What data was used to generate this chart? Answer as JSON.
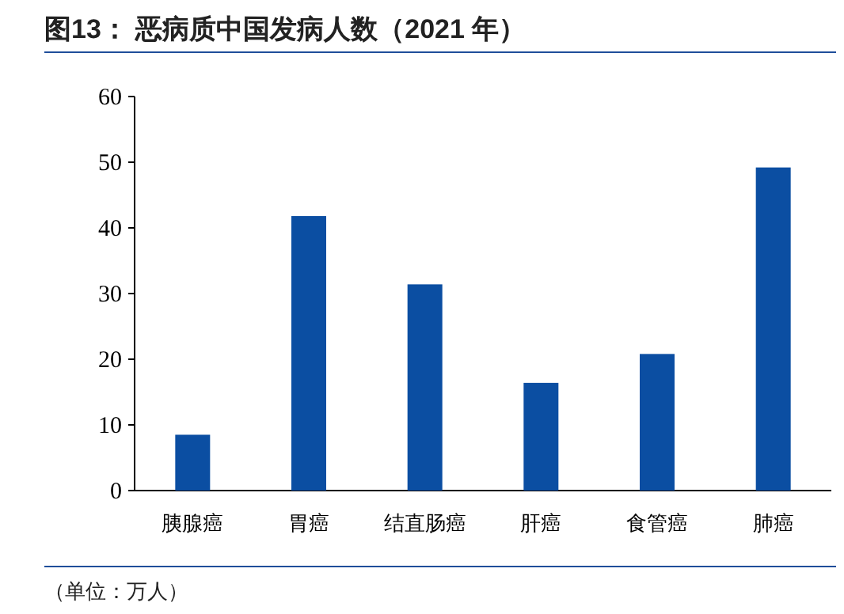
{
  "chart_data": {
    "type": "bar",
    "title": "图13：  恶病质中国发病人数（2021 年）",
    "categories": [
      "胰腺癌",
      "胃癌",
      "结直肠癌",
      "肝癌",
      "食管癌",
      "肺癌"
    ],
    "values": [
      8.5,
      41.8,
      31.4,
      16.4,
      20.8,
      49.2
    ],
    "color": "#0b4ea2",
    "ylim": [
      0,
      60
    ],
    "yticks": [
      0,
      10,
      20,
      30,
      40,
      50,
      60
    ],
    "annotations": [
      "（单位：万人）"
    ]
  }
}
